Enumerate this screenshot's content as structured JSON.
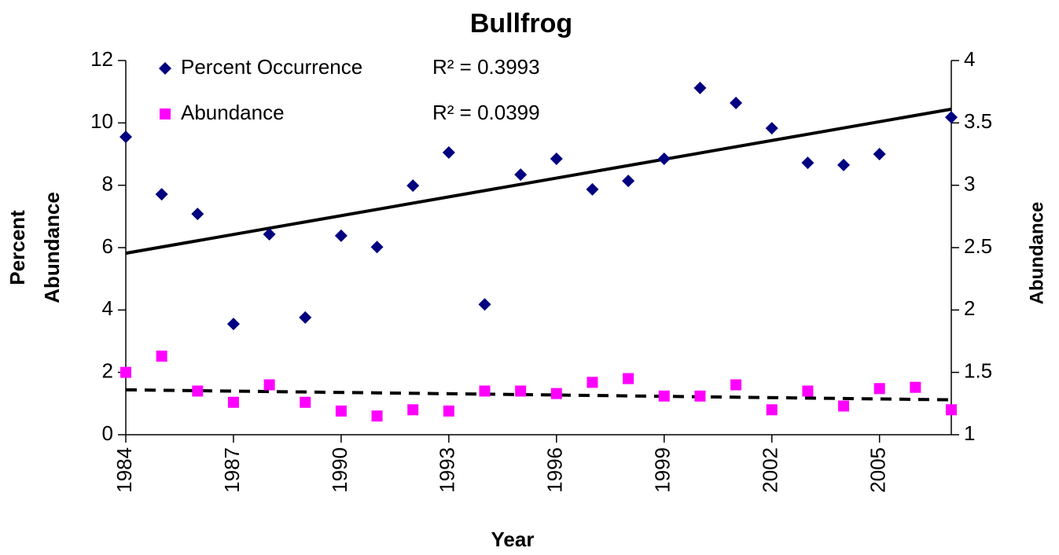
{
  "chart_data": {
    "type": "scatter",
    "title": "Bullfrog",
    "xlabel": "Year",
    "ylabel": [
      "Percent",
      "Abundance"
    ],
    "y2label": "Abundance",
    "x": [
      1984,
      1985,
      1986,
      1987,
      1988,
      1989,
      1990,
      1991,
      1992,
      1993,
      1994,
      1995,
      1996,
      1997,
      1998,
      1999,
      2000,
      2001,
      2002,
      2003,
      2004,
      2005,
      2006,
      2007
    ],
    "xlim": [
      1984,
      2007
    ],
    "xticks": [
      1984,
      1987,
      1990,
      1993,
      1996,
      1999,
      2002,
      2005
    ],
    "ylim": [
      0,
      12
    ],
    "yticks": [
      0,
      2,
      4,
      6,
      8,
      10,
      12
    ],
    "y2lim": [
      1,
      4
    ],
    "y2ticks": [
      1,
      1.5,
      2,
      2.5,
      3,
      3.5,
      4
    ],
    "series": [
      {
        "name": "Percent Occurrence",
        "color": "#000080",
        "marker": "diamond",
        "r2_label": "R² = 0.3993",
        "values": [
          9.55,
          7.71,
          7.08,
          3.55,
          6.43,
          3.76,
          6.38,
          6.02,
          7.99,
          9.05,
          4.18,
          8.34,
          8.85,
          7.87,
          8.14,
          8.85,
          11.12,
          10.64,
          9.83,
          8.72,
          8.65,
          9.0,
          null,
          10.18
        ],
        "trend": [
          5.82,
          10.44
        ],
        "trend_style": "solid"
      },
      {
        "name": "Abundance",
        "color": "#ff00ff",
        "marker": "square",
        "axis": "y2",
        "r2_label": "R² = 0.0399",
        "values": [
          1.5,
          1.63,
          1.35,
          1.26,
          1.4,
          1.26,
          1.19,
          1.15,
          1.2,
          1.19,
          1.35,
          1.35,
          1.33,
          1.42,
          1.45,
          1.31,
          1.31,
          1.4,
          1.2,
          1.35,
          1.23,
          1.37,
          1.38,
          1.2
        ],
        "trend": [
          1.36,
          1.28
        ],
        "trend_style": "dashed"
      }
    ]
  }
}
